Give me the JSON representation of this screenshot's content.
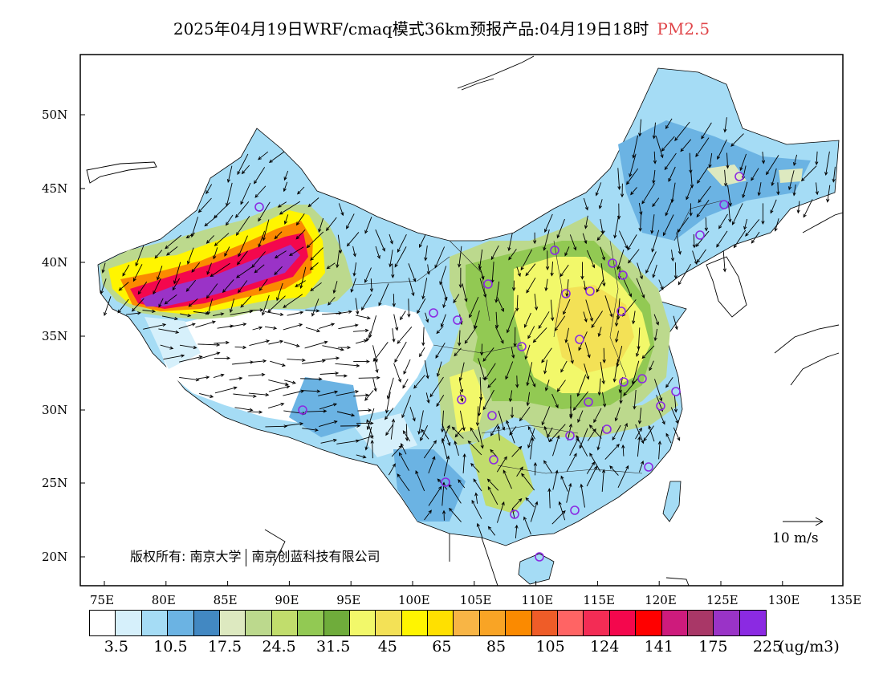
{
  "title": {
    "main": "2025年04月19日WRF/cmaq模式36km预报产品:04月19日18时",
    "variable": "PM2.5"
  },
  "axes": {
    "lon_labels": [
      "75E",
      "80E",
      "85E",
      "90E",
      "95E",
      "100E",
      "105E",
      "110E",
      "115E",
      "120E",
      "125E",
      "130E",
      "135E"
    ],
    "lat_labels": [
      "50N",
      "45N",
      "40N",
      "35N",
      "30N",
      "25N",
      "20N"
    ]
  },
  "colorbar": {
    "colors": [
      "#ffffff",
      "#d6f0fb",
      "#a5dcf5",
      "#6bb3e3",
      "#4288c2",
      "#dde9c0",
      "#bcd98d",
      "#c1dd6c",
      "#92c953",
      "#6fac3b",
      "#f2f86a",
      "#f3e156",
      "#fff500",
      "#ffe000",
      "#f8b545",
      "#f9a425",
      "#fb8a00",
      "#ef5c28",
      "#ff6464",
      "#f32c55",
      "#f4074d",
      "#ff0000",
      "#ce1b7c",
      "#a93767",
      "#9a33c7",
      "#8b2ae2"
    ],
    "labels": [
      "3.5",
      "10.5",
      "17.5",
      "24.5",
      "31.5",
      "45",
      "65",
      "85",
      "105",
      "124",
      "141",
      "175",
      "225"
    ],
    "unit": "(ug/m3)"
  },
  "wind_reference": {
    "label": "10 m/s"
  },
  "copyright": {
    "part1": "版权所有: 南京大学",
    "part2": "南京创蓝科技有限公司"
  },
  "stations_note": "purple circles mark city stations",
  "accent_colors": {
    "station": "#8b2ae2",
    "title_variable": "#e0464a"
  }
}
